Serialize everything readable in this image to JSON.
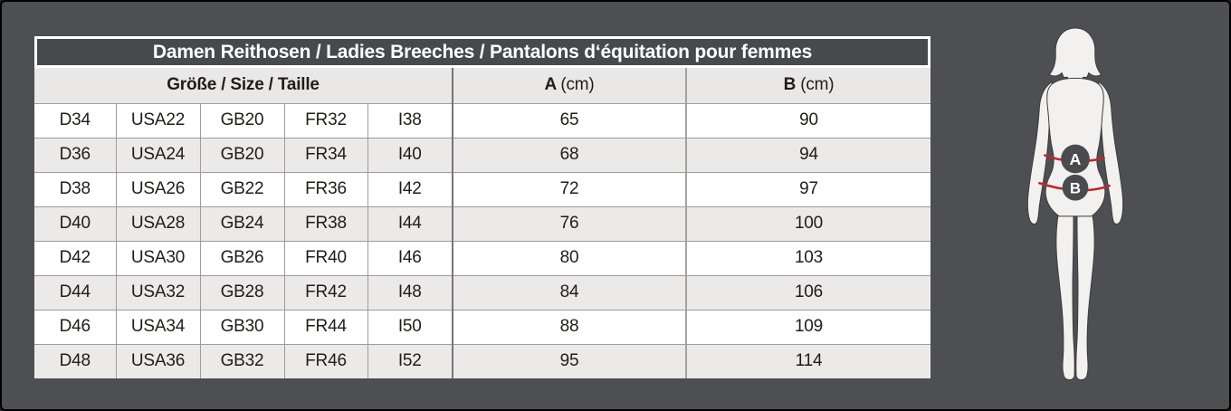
{
  "table": {
    "title": "Damen Reithosen / Ladies Breeches / Pantalons d‘équitation pour femmes",
    "headers": {
      "size_group": "Größe / Size / Taille",
      "a_label": "A",
      "a_unit": "(cm)",
      "b_label": "B",
      "b_unit": "(cm)"
    },
    "rows": [
      [
        "D34",
        "USA22",
        "GB20",
        "FR32",
        "I38",
        "65",
        "90"
      ],
      [
        "D36",
        "USA24",
        "GB20",
        "FR34",
        "I40",
        "68",
        "94"
      ],
      [
        "D38",
        "USA26",
        "GB22",
        "FR36",
        "I42",
        "72",
        "97"
      ],
      [
        "D40",
        "USA28",
        "GB24",
        "FR38",
        "I44",
        "76",
        "100"
      ],
      [
        "D42",
        "USA30",
        "GB26",
        "FR40",
        "I46",
        "80",
        "103"
      ],
      [
        "D44",
        "USA32",
        "GB28",
        "FR42",
        "I48",
        "84",
        "106"
      ],
      [
        "D46",
        "USA34",
        "GB30",
        "FR44",
        "I50",
        "88",
        "109"
      ],
      [
        "D48",
        "USA36",
        "GB32",
        "FR46",
        "I52",
        "95",
        "114"
      ]
    ]
  },
  "figure": {
    "marker_a": "A",
    "marker_b": "B"
  },
  "colors": {
    "background": "#4d4f52",
    "title_bar": "#48494b",
    "header_row": "#e9e8e6",
    "alt_row": "#ebeae8",
    "measure_line_red": "#c1272d",
    "marker_circle": "#4a4b4d",
    "silhouette": "#f2f1ef"
  }
}
